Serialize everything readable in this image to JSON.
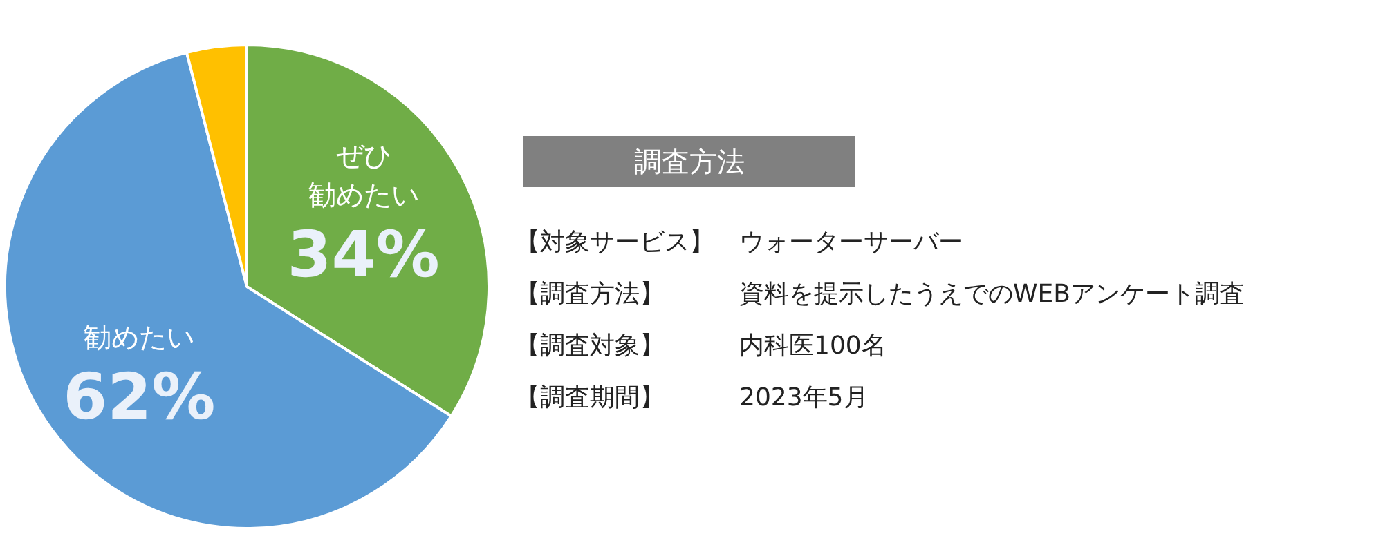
{
  "chart_data": {
    "type": "pie",
    "categories": [
      "ぜひ勧めたい",
      "勧めたい",
      null
    ],
    "values": [
      34,
      62,
      4
    ],
    "colors": [
      "#70ad47",
      "#5b9bd5",
      "#ffc000"
    ],
    "value_labels": [
      "34%",
      "62%",
      null
    ],
    "annotations": [
      "調査方法",
      "【対象サービス】　ウォーターサーバー",
      "【調査方法】　　　資料を提示したうえでのWEBアンケート調査",
      "【調査対象】　　　内科医100名",
      "【調査期間】　　　2023年5月"
    ]
  }
}
